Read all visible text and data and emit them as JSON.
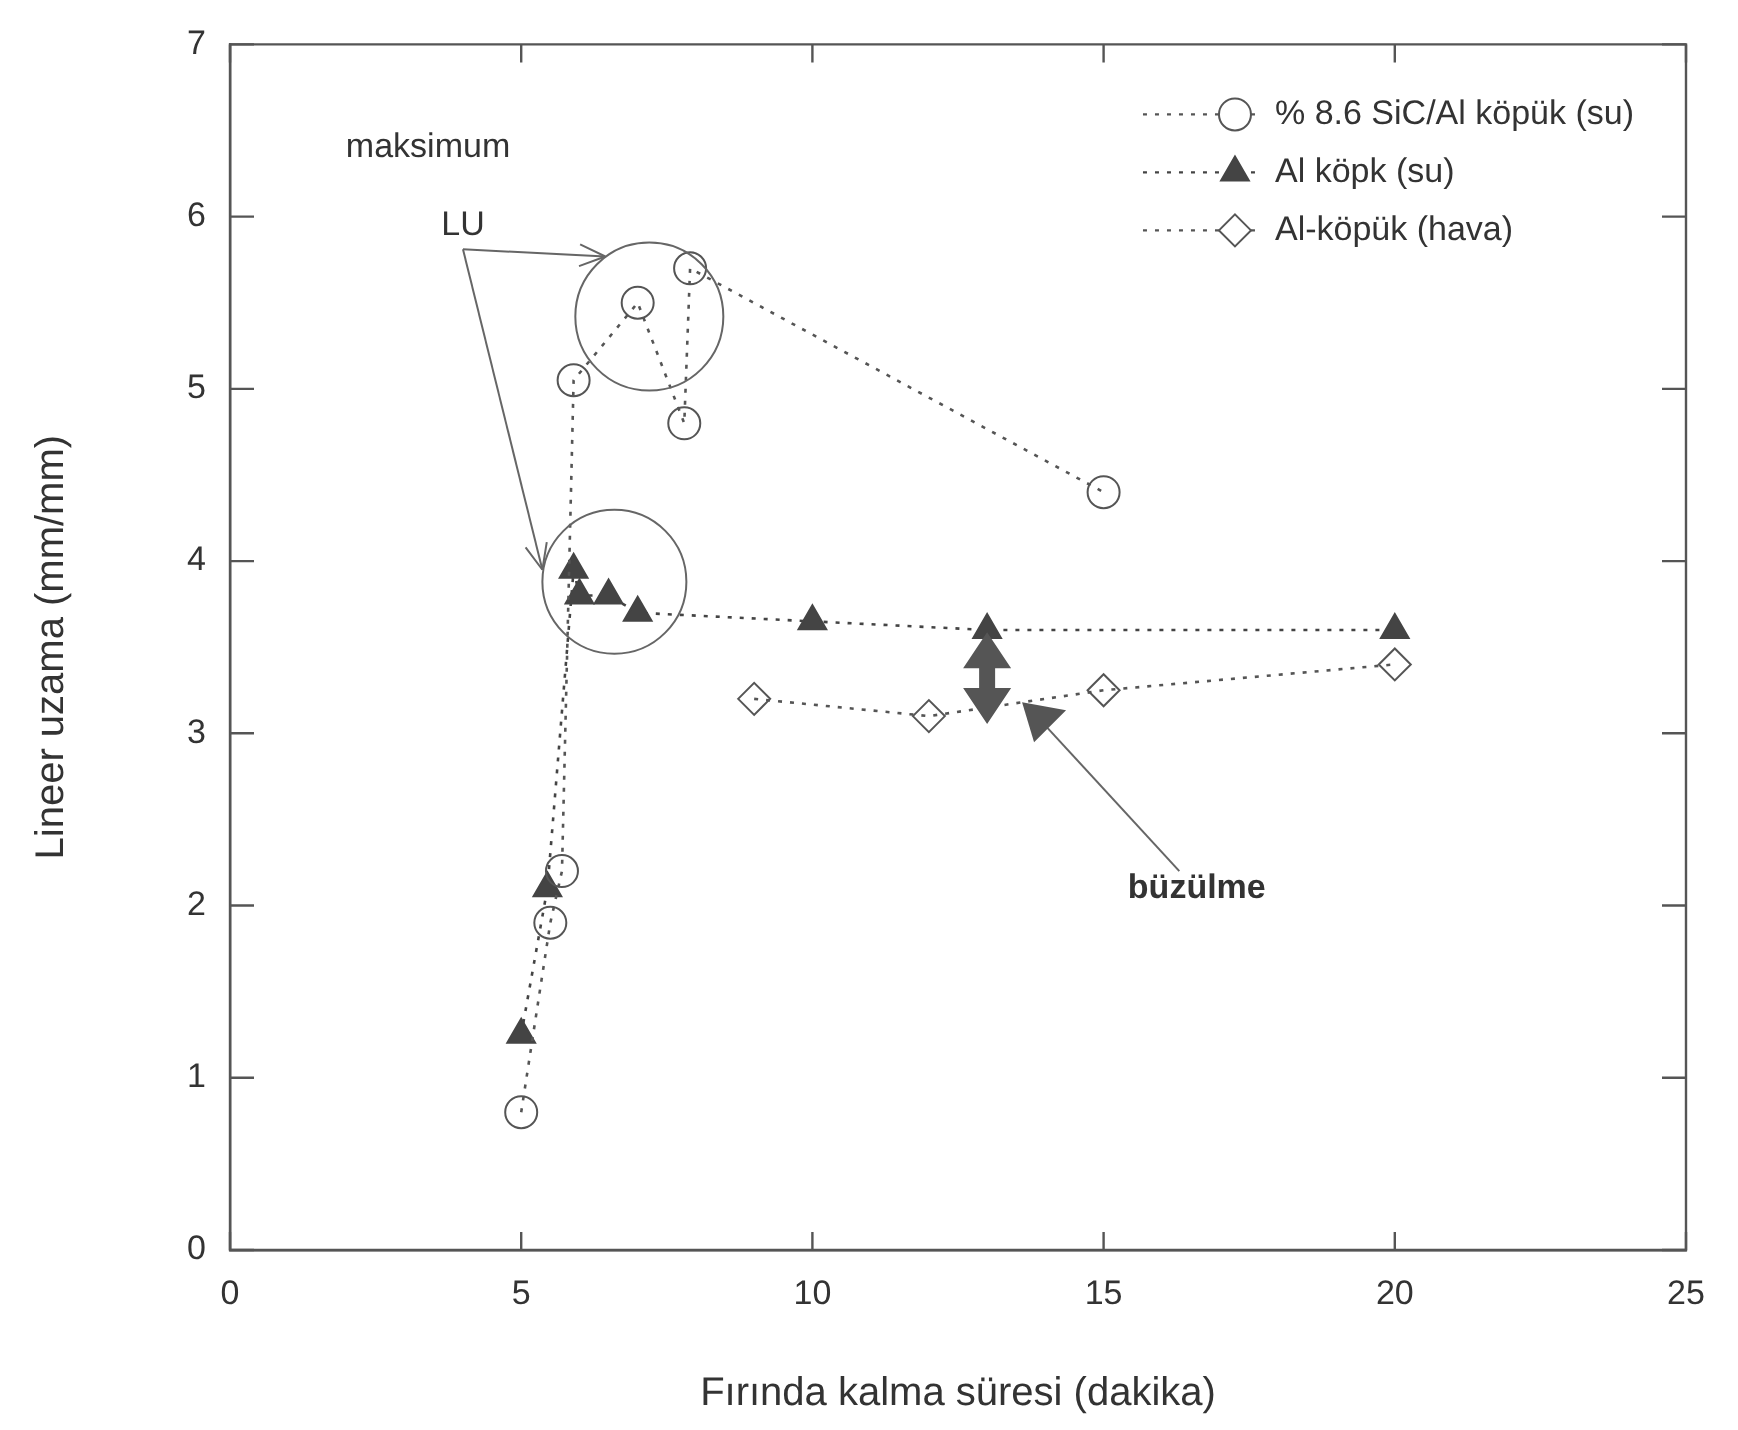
{
  "chart_data": {
    "type": "line",
    "xlabel": "Fırında kalma süresi (dakika)",
    "ylabel": "Lineer uzama (mm/mm)",
    "xlim": [
      0,
      25
    ],
    "xticks": [
      0,
      5,
      10,
      15,
      20,
      25
    ],
    "ylim": [
      0,
      7
    ],
    "yticks": [
      0,
      1,
      2,
      3,
      4,
      5,
      6,
      7
    ],
    "grid": false,
    "legend": "top right",
    "line_style": "dotted",
    "series": [
      {
        "name": "% 8.6 SiC/Al köpük (su)",
        "color": "#555555",
        "marker": "circle",
        "x": [
          5.0,
          5.5,
          5.7,
          5.9,
          7.0,
          7.8,
          7.9,
          15.0
        ],
        "values": [
          0.8,
          1.9,
          2.2,
          5.05,
          5.5,
          4.8,
          5.7,
          4.4
        ]
      },
      {
        "name": "Al köpk (su)",
        "color": "#444444",
        "marker": "triangle",
        "x": [
          5.0,
          5.45,
          5.9,
          6.0,
          6.5,
          7.0,
          10.0,
          13.0,
          20.0
        ],
        "values": [
          1.25,
          2.1,
          3.95,
          3.8,
          3.8,
          3.7,
          3.65,
          3.6,
          3.6
        ]
      },
      {
        "name": "Al-köpük (hava)",
        "color": "#555555",
        "marker": "diamond",
        "x": [
          9.0,
          12.0,
          15.0,
          20.0
        ],
        "values": [
          3.2,
          3.1,
          3.25,
          3.4
        ]
      }
    ],
    "annotations": [
      "maksimum",
      "LU",
      "büzülme"
    ]
  }
}
